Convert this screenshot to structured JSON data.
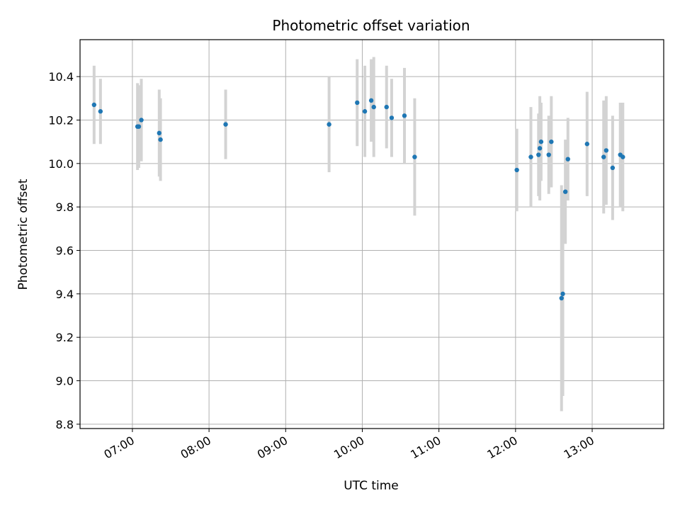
{
  "chart_data": {
    "type": "scatter",
    "title": "Photometric offset variation",
    "xlabel": "UTC time",
    "ylabel": "Photometric offset",
    "x_ticks": [
      "07:00",
      "08:00",
      "09:00",
      "10:00",
      "11:00",
      "12:00",
      "13:00"
    ],
    "y_ticks": [
      "8.8",
      "9.0",
      "9.2",
      "9.4",
      "9.6",
      "9.8",
      "10.0",
      "10.2",
      "10.4"
    ],
    "xlim": [
      "06:19",
      "13:56"
    ],
    "ylim": [
      8.78,
      10.57
    ],
    "grid": true,
    "colors": {
      "point": "#1f77b4",
      "errorbar": "#d3d3d3",
      "grid": "#b0b0b0"
    },
    "points": [
      {
        "x": "06:30",
        "y": 10.27,
        "err": 0.18
      },
      {
        "x": "06:35",
        "y": 10.24,
        "err": 0.15
      },
      {
        "x": "07:04",
        "y": 10.17,
        "err": 0.2
      },
      {
        "x": "07:05",
        "y": 10.17,
        "err": 0.19
      },
      {
        "x": "07:07",
        "y": 10.2,
        "err": 0.19
      },
      {
        "x": "07:21",
        "y": 10.14,
        "err": 0.2
      },
      {
        "x": "07:22",
        "y": 10.11,
        "err": 0.19
      },
      {
        "x": "08:13",
        "y": 10.18,
        "err": 0.16
      },
      {
        "x": "09:34",
        "y": 10.18,
        "err": 0.22
      },
      {
        "x": "09:56",
        "y": 10.28,
        "err": 0.2
      },
      {
        "x": "10:02",
        "y": 10.24,
        "err": 0.21
      },
      {
        "x": "10:07",
        "y": 10.29,
        "err": 0.19
      },
      {
        "x": "10:09",
        "y": 10.26,
        "err": 0.23
      },
      {
        "x": "10:19",
        "y": 10.26,
        "err": 0.19
      },
      {
        "x": "10:23",
        "y": 10.21,
        "err": 0.18
      },
      {
        "x": "10:33",
        "y": 10.22,
        "err": 0.22
      },
      {
        "x": "10:41",
        "y": 10.03,
        "err": 0.27
      },
      {
        "x": "12:01",
        "y": 9.97,
        "err": 0.19
      },
      {
        "x": "12:12",
        "y": 10.03,
        "err": 0.23
      },
      {
        "x": "12:18",
        "y": 10.04,
        "err": 0.19
      },
      {
        "x": "12:19",
        "y": 10.07,
        "err": 0.24
      },
      {
        "x": "12:20",
        "y": 10.1,
        "err": 0.18
      },
      {
        "x": "12:26",
        "y": 10.04,
        "err": 0.18
      },
      {
        "x": "12:28",
        "y": 10.1,
        "err": 0.21
      },
      {
        "x": "12:36",
        "y": 9.38,
        "err": 0.52
      },
      {
        "x": "12:37",
        "y": 9.4,
        "err": 0.47
      },
      {
        "x": "12:39",
        "y": 9.87,
        "err": 0.24
      },
      {
        "x": "12:41",
        "y": 10.02,
        "err": 0.19
      },
      {
        "x": "12:56",
        "y": 10.09,
        "err": 0.24
      },
      {
        "x": "13:09",
        "y": 10.03,
        "err": 0.26
      },
      {
        "x": "13:11",
        "y": 10.06,
        "err": 0.25
      },
      {
        "x": "13:16",
        "y": 9.98,
        "err": 0.24
      },
      {
        "x": "13:22",
        "y": 10.04,
        "err": 0.24
      },
      {
        "x": "13:24",
        "y": 10.03,
        "err": 0.25
      }
    ]
  }
}
